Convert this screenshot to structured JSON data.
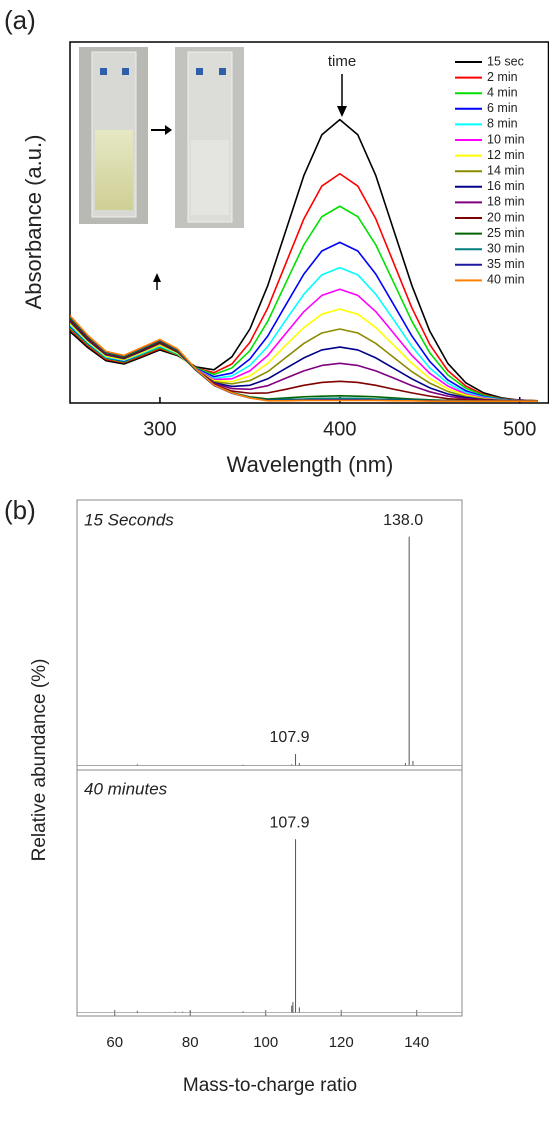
{
  "chart_data": [
    {
      "type": "line",
      "panel": "(a)",
      "xlabel": "Wavelength (nm)",
      "ylabel": "Absorbance (a.u.)",
      "annotation": "time",
      "xlim": [
        250,
        516
      ],
      "ylim": [
        0,
        1
      ],
      "xticks": [
        300,
        400,
        500
      ],
      "x": [
        250,
        260,
        270,
        280,
        290,
        300,
        310,
        320,
        330,
        340,
        350,
        360,
        370,
        380,
        390,
        400,
        410,
        420,
        430,
        440,
        450,
        460,
        470,
        480,
        490,
        500,
        510
      ],
      "series": [
        {
          "name": "15 sec",
          "color": "#000000",
          "values": [
            0.198,
            0.153,
            0.117,
            0.108,
            0.127,
            0.147,
            0.131,
            0.1,
            0.092,
            0.128,
            0.205,
            0.326,
            0.478,
            0.63,
            0.743,
            0.785,
            0.743,
            0.63,
            0.478,
            0.326,
            0.199,
            0.11,
            0.056,
            0.028,
            0.014,
            0.008,
            0.006
          ]
        },
        {
          "name": "2 min",
          "color": "#ff0000",
          "values": [
            0.205,
            0.158,
            0.121,
            0.112,
            0.131,
            0.151,
            0.133,
            0.097,
            0.084,
            0.108,
            0.168,
            0.264,
            0.387,
            0.51,
            0.601,
            0.635,
            0.601,
            0.51,
            0.387,
            0.264,
            0.162,
            0.09,
            0.047,
            0.023,
            0.012,
            0.008,
            0.006
          ]
        },
        {
          "name": "4 min",
          "color": "#00e000",
          "values": [
            0.209,
            0.162,
            0.124,
            0.114,
            0.134,
            0.154,
            0.134,
            0.097,
            0.079,
            0.097,
            0.145,
            0.227,
            0.333,
            0.438,
            0.516,
            0.545,
            0.516,
            0.438,
            0.333,
            0.227,
            0.139,
            0.078,
            0.041,
            0.021,
            0.011,
            0.007,
            0.006
          ]
        },
        {
          "name": "6 min",
          "color": "#0000ff",
          "values": [
            0.213,
            0.165,
            0.126,
            0.116,
            0.136,
            0.157,
            0.136,
            0.095,
            0.073,
            0.083,
            0.122,
            0.186,
            0.272,
            0.357,
            0.421,
            0.445,
            0.421,
            0.357,
            0.272,
            0.186,
            0.115,
            0.064,
            0.034,
            0.018,
            0.01,
            0.007,
            0.005
          ]
        },
        {
          "name": "8 min",
          "color": "#00ffff",
          "values": [
            0.216,
            0.167,
            0.127,
            0.118,
            0.137,
            0.158,
            0.136,
            0.094,
            0.068,
            0.075,
            0.104,
            0.157,
            0.23,
            0.301,
            0.355,
            0.375,
            0.355,
            0.301,
            0.23,
            0.157,
            0.097,
            0.055,
            0.029,
            0.016,
            0.009,
            0.006,
            0.005
          ]
        },
        {
          "name": "10 min",
          "color": "#ff00ff",
          "values": [
            0.22,
            0.17,
            0.13,
            0.12,
            0.14,
            0.161,
            0.138,
            0.094,
            0.065,
            0.067,
            0.089,
            0.132,
            0.193,
            0.253,
            0.298,
            0.315,
            0.298,
            0.253,
            0.193,
            0.132,
            0.082,
            0.047,
            0.025,
            0.014,
            0.008,
            0.006,
            0.005
          ]
        },
        {
          "name": "12 min",
          "color": "#ffff00",
          "values": [
            0.22,
            0.17,
            0.13,
            0.12,
            0.14,
            0.161,
            0.138,
            0.092,
            0.062,
            0.059,
            0.075,
            0.11,
            0.16,
            0.209,
            0.246,
            0.26,
            0.246,
            0.209,
            0.16,
            0.11,
            0.068,
            0.039,
            0.022,
            0.012,
            0.008,
            0.006,
            0.005
          ]
        },
        {
          "name": "14 min",
          "color": "#8b8b00",
          "values": [
            0.224,
            0.173,
            0.133,
            0.122,
            0.143,
            0.164,
            0.14,
            0.093,
            0.059,
            0.053,
            0.062,
            0.087,
            0.126,
            0.165,
            0.194,
            0.205,
            0.194,
            0.165,
            0.126,
            0.087,
            0.055,
            0.032,
            0.018,
            0.011,
            0.007,
            0.006,
            0.005
          ]
        },
        {
          "name": "16 min",
          "color": "#00008b",
          "values": [
            0.227,
            0.175,
            0.134,
            0.124,
            0.144,
            0.166,
            0.141,
            0.092,
            0.056,
            0.046,
            0.049,
            0.067,
            0.096,
            0.125,
            0.147,
            0.155,
            0.147,
            0.125,
            0.096,
            0.067,
            0.042,
            0.025,
            0.015,
            0.009,
            0.007,
            0.006,
            0.005
          ]
        },
        {
          "name": "18 min",
          "color": "#800080",
          "values": [
            0.229,
            0.177,
            0.135,
            0.125,
            0.146,
            0.166,
            0.141,
            0.091,
            0.054,
            0.04,
            0.038,
            0.048,
            0.069,
            0.089,
            0.104,
            0.11,
            0.104,
            0.089,
            0.069,
            0.048,
            0.031,
            0.019,
            0.012,
            0.008,
            0.006,
            0.005,
            0.005
          ]
        },
        {
          "name": "20 min",
          "color": "#800000",
          "values": [
            0.231,
            0.179,
            0.137,
            0.126,
            0.147,
            0.168,
            0.142,
            0.091,
            0.051,
            0.033,
            0.027,
            0.028,
            0.038,
            0.049,
            0.057,
            0.06,
            0.057,
            0.049,
            0.038,
            0.028,
            0.019,
            0.012,
            0.009,
            0.007,
            0.006,
            0.005,
            0.005
          ]
        },
        {
          "name": "25 min",
          "color": "#006400",
          "values": [
            0.235,
            0.182,
            0.139,
            0.128,
            0.15,
            0.171,
            0.144,
            0.091,
            0.049,
            0.029,
            0.017,
            0.011,
            0.014,
            0.017,
            0.019,
            0.02,
            0.019,
            0.017,
            0.014,
            0.011,
            0.009,
            0.007,
            0.006,
            0.005,
            0.005,
            0.005,
            0.005
          ]
        },
        {
          "name": "30 min",
          "color": "#008080",
          "values": [
            0.238,
            0.184,
            0.14,
            0.13,
            0.151,
            0.173,
            0.146,
            0.092,
            0.049,
            0.028,
            0.015,
            0.008,
            0.01,
            0.011,
            0.013,
            0.013,
            0.013,
            0.011,
            0.01,
            0.008,
            0.007,
            0.006,
            0.005,
            0.005,
            0.005,
            0.005,
            0.005
          ]
        },
        {
          "name": "35 min",
          "color": "#1a1aa0",
          "values": [
            0.24,
            0.185,
            0.142,
            0.131,
            0.153,
            0.174,
            0.147,
            0.093,
            0.049,
            0.027,
            0.014,
            0.007,
            0.007,
            0.008,
            0.009,
            0.009,
            0.009,
            0.008,
            0.007,
            0.007,
            0.006,
            0.005,
            0.005,
            0.005,
            0.005,
            0.005,
            0.005
          ]
        },
        {
          "name": "40 min",
          "color": "#ff8000",
          "values": [
            0.242,
            0.187,
            0.143,
            0.132,
            0.154,
            0.176,
            0.149,
            0.094,
            0.05,
            0.028,
            0.014,
            0.006,
            0.006,
            0.007,
            0.007,
            0.007,
            0.007,
            0.007,
            0.006,
            0.006,
            0.005,
            0.005,
            0.005,
            0.005,
            0.005,
            0.005,
            0.005
          ]
        }
      ]
    },
    {
      "type": "stem",
      "panel": "(b)",
      "ylabel": "Relative abundance (%)",
      "subtitle": "15 Seconds",
      "color": "#555555",
      "xlim": [
        50,
        152
      ],
      "ylim": [
        -2,
        116
      ],
      "x": [
        66,
        94,
        106.9,
        107.9,
        108.9,
        137,
        138.0,
        139
      ],
      "values": [
        0.5,
        0.3,
        0.5,
        5,
        1,
        1,
        100,
        2
      ],
      "x_labels": [
        null,
        null,
        null,
        "107.9",
        null,
        null,
        "138.0",
        null
      ]
    },
    {
      "type": "stem",
      "subtitle": "40 minutes",
      "xlabel": "Mass-to-charge ratio",
      "color": "#555555",
      "xlim": [
        50,
        152
      ],
      "ylim": [
        -2,
        140
      ],
      "xticks": [
        60,
        80,
        100,
        120,
        140
      ],
      "x": [
        66,
        76,
        78,
        80,
        94,
        106.9,
        107.2,
        107.9,
        108.9
      ],
      "values": [
        1,
        0.5,
        0.5,
        0.7,
        0.7,
        4,
        6,
        100,
        3
      ],
      "x_labels": [
        null,
        null,
        null,
        null,
        null,
        null,
        null,
        "107.9",
        null
      ]
    }
  ]
}
